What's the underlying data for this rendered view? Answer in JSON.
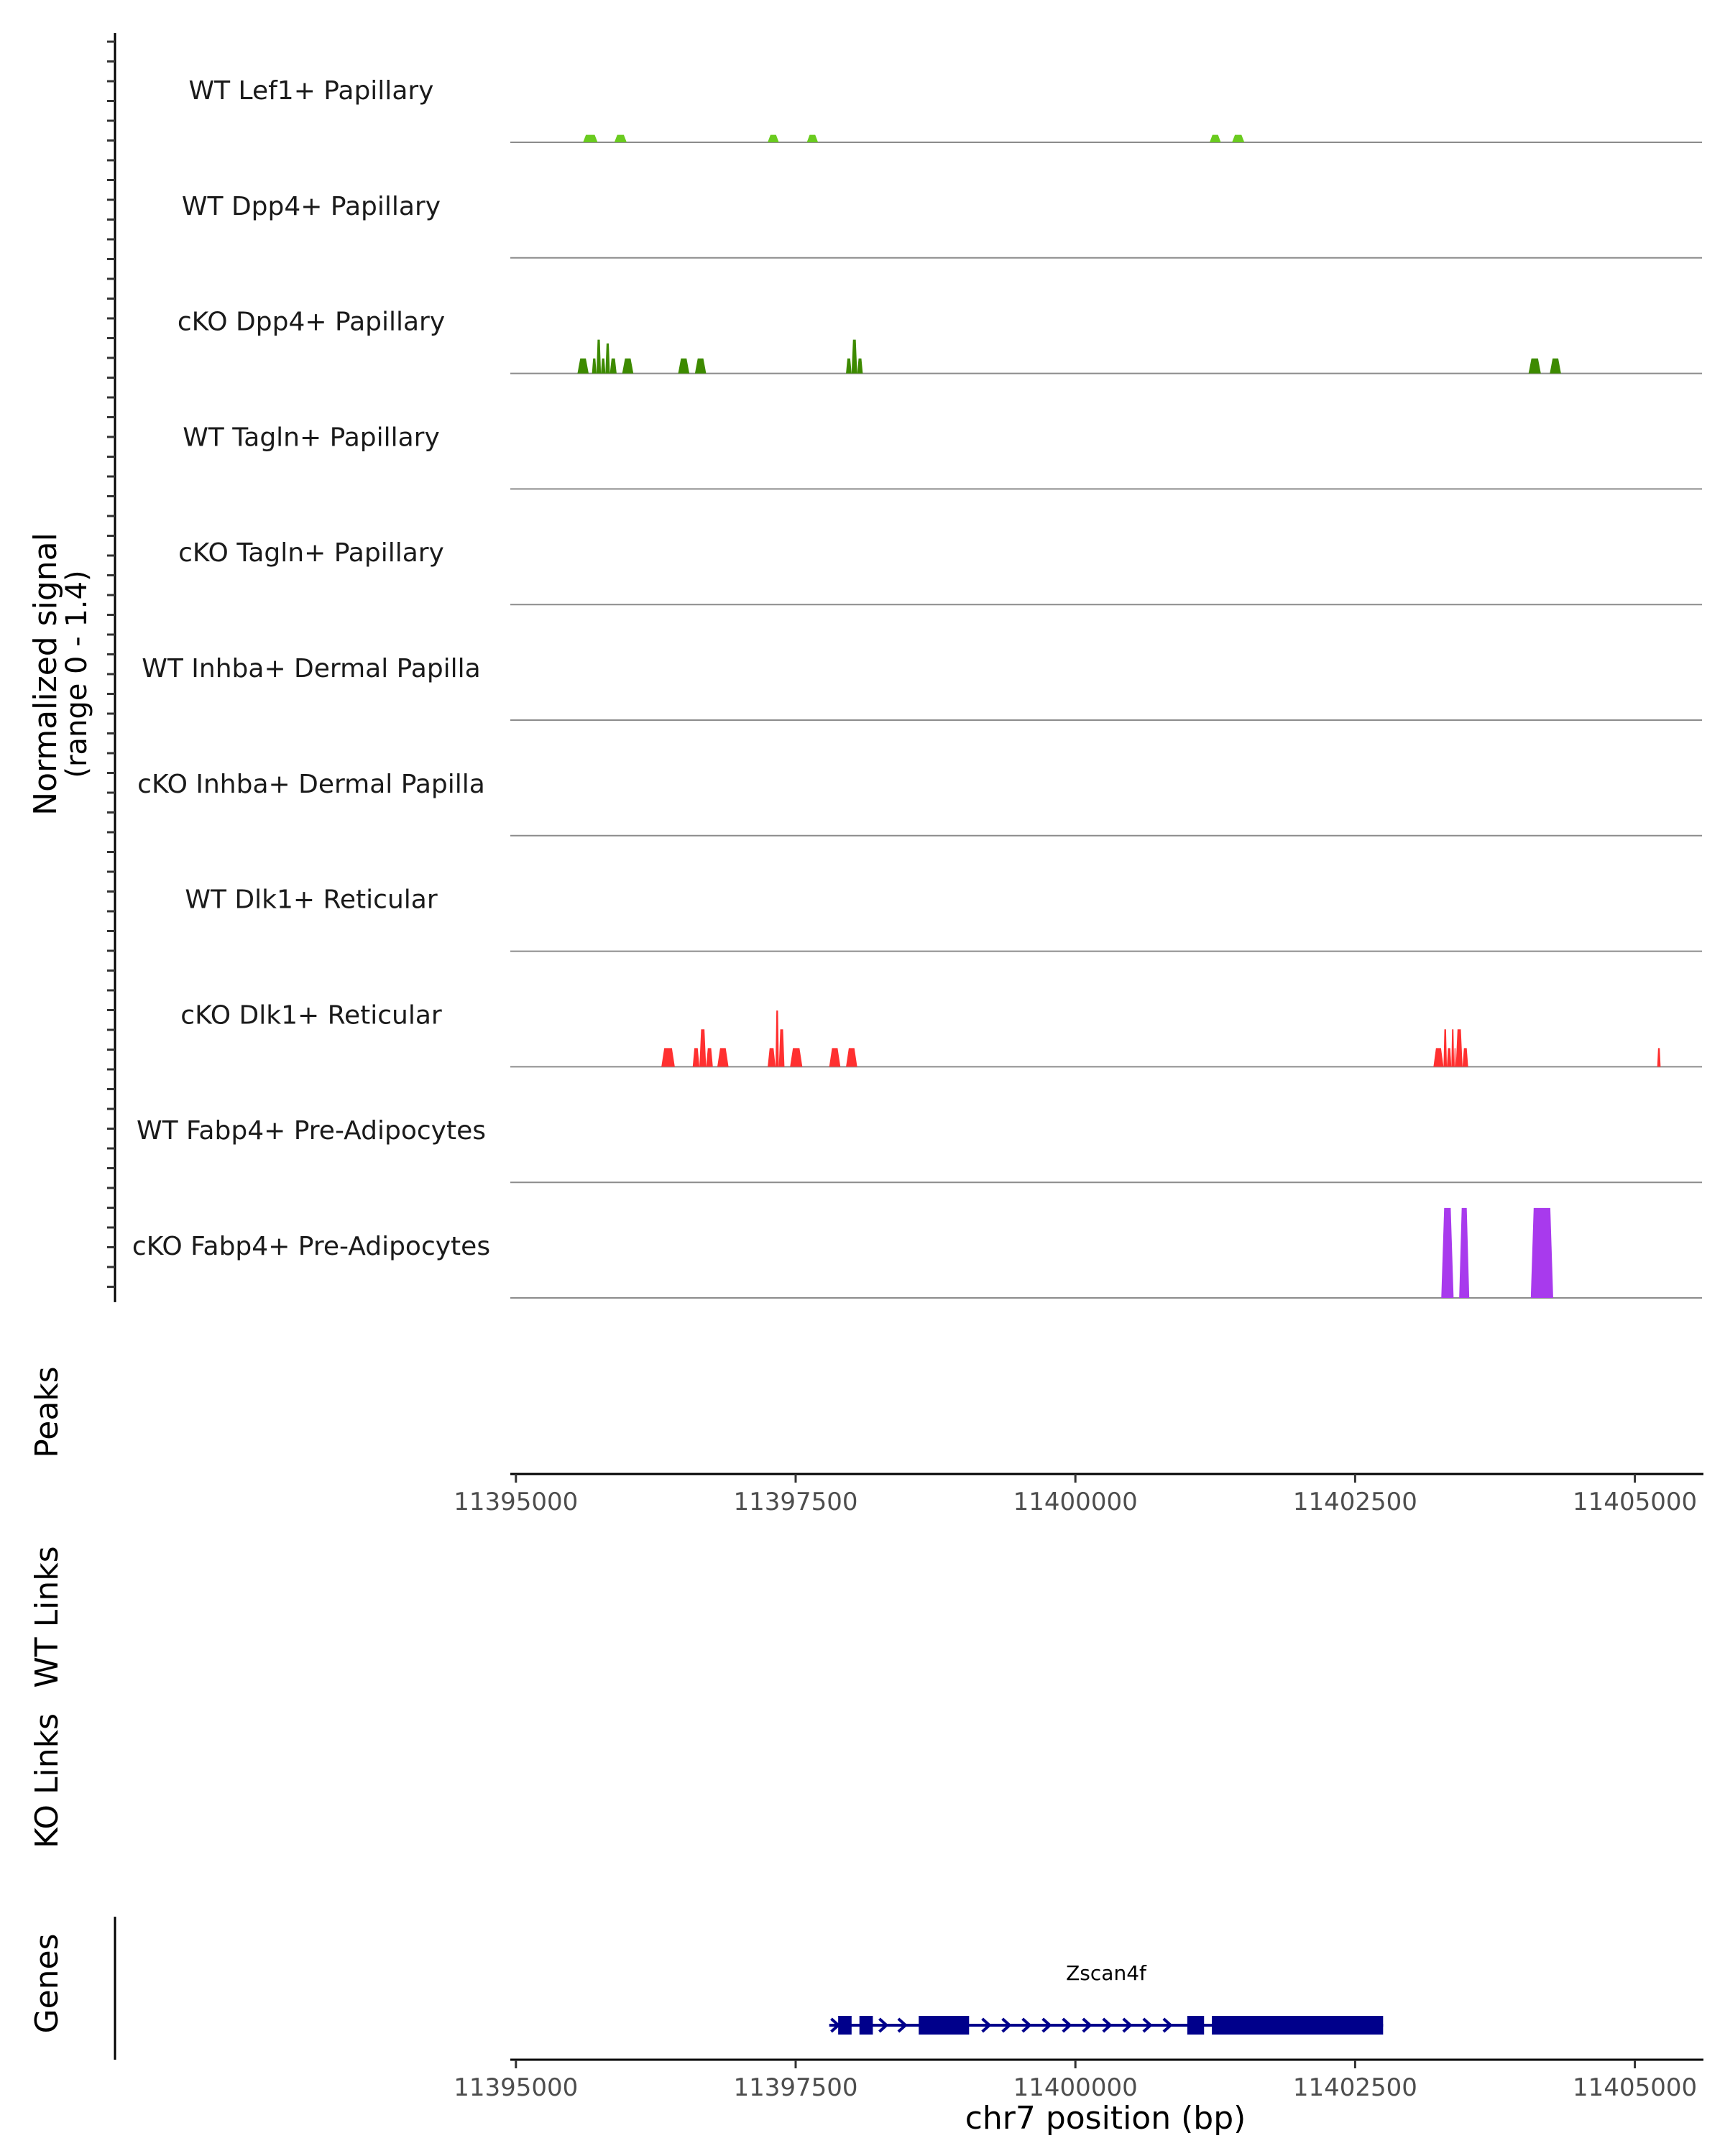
{
  "chart_data": {
    "type": "area",
    "ylabel": "Normalized signal",
    "ylabel_range": "(range 0 - 1.4)",
    "ylim": [
      0,
      1.4
    ],
    "xlim": [
      11394950,
      11405600
    ],
    "xlabel": "chr7 position (bp)",
    "x_ticks": [
      11395000,
      11397500,
      11400000,
      11402500,
      11405000
    ],
    "x_tick_labels": [
      "11395000",
      "11397500",
      "11400000",
      "11402500",
      "11405000"
    ],
    "tracks": [
      {
        "name": "WT Lef1+ Papillary",
        "color": "#6ACB1F",
        "peaks": [
          {
            "start": 11395600,
            "end": 11395730,
            "height": 0.1
          },
          {
            "start": 11395880,
            "end": 11395990,
            "height": 0.1
          },
          {
            "start": 11397250,
            "end": 11397350,
            "height": 0.1
          },
          {
            "start": 11397600,
            "end": 11397700,
            "height": 0.1
          },
          {
            "start": 11401200,
            "end": 11401300,
            "height": 0.1
          },
          {
            "start": 11401400,
            "end": 11401510,
            "height": 0.1
          }
        ]
      },
      {
        "name": "WT Dpp4+ Papillary",
        "color": "#3D8A00",
        "peaks": []
      },
      {
        "name": "cKO Dpp4+ Papillary",
        "color": "#3D8A00",
        "peaks": [
          {
            "start": 11395550,
            "end": 11395650,
            "height": 0.2
          },
          {
            "start": 11395680,
            "end": 11395720,
            "height": 0.2
          },
          {
            "start": 11395720,
            "end": 11395760,
            "height": 0.45
          },
          {
            "start": 11395760,
            "end": 11395800,
            "height": 0.2
          },
          {
            "start": 11395800,
            "end": 11395840,
            "height": 0.4
          },
          {
            "start": 11395840,
            "end": 11395900,
            "height": 0.2
          },
          {
            "start": 11395950,
            "end": 11396050,
            "height": 0.2
          },
          {
            "start": 11396450,
            "end": 11396550,
            "height": 0.2
          },
          {
            "start": 11396600,
            "end": 11396700,
            "height": 0.2
          },
          {
            "start": 11397950,
            "end": 11398000,
            "height": 0.2
          },
          {
            "start": 11398000,
            "end": 11398050,
            "height": 0.45
          },
          {
            "start": 11398050,
            "end": 11398100,
            "height": 0.2
          },
          {
            "start": 11404050,
            "end": 11404160,
            "height": 0.2
          },
          {
            "start": 11404240,
            "end": 11404340,
            "height": 0.2
          }
        ]
      },
      {
        "name": "WT Tagln+ Papillary",
        "color": "#3D8A00",
        "peaks": []
      },
      {
        "name": "cKO Tagln+ Papillary",
        "color": "#3D8A00",
        "peaks": []
      },
      {
        "name": "WT Inhba+ Dermal Papilla",
        "color": "#3D8A00",
        "peaks": []
      },
      {
        "name": "cKO Inhba+ Dermal Papilla",
        "color": "#3D8A00",
        "peaks": []
      },
      {
        "name": "WT Dlk1+ Reticular",
        "color": "#FF3030",
        "peaks": []
      },
      {
        "name": "cKO Dlk1+ Reticular",
        "color": "#FF3030",
        "peaks": [
          {
            "start": 11396300,
            "end": 11396420,
            "height": 0.25
          },
          {
            "start": 11396580,
            "end": 11396640,
            "height": 0.25
          },
          {
            "start": 11396640,
            "end": 11396700,
            "height": 0.5
          },
          {
            "start": 11396700,
            "end": 11396760,
            "height": 0.25
          },
          {
            "start": 11396800,
            "end": 11396900,
            "height": 0.25
          },
          {
            "start": 11397250,
            "end": 11397320,
            "height": 0.25
          },
          {
            "start": 11397320,
            "end": 11397350,
            "height": 0.75
          },
          {
            "start": 11397350,
            "end": 11397400,
            "height": 0.5
          },
          {
            "start": 11397450,
            "end": 11397560,
            "height": 0.25
          },
          {
            "start": 11397800,
            "end": 11397900,
            "height": 0.25
          },
          {
            "start": 11397950,
            "end": 11398050,
            "height": 0.25
          },
          {
            "start": 11403200,
            "end": 11403290,
            "height": 0.25
          },
          {
            "start": 11403290,
            "end": 11403320,
            "height": 0.5
          },
          {
            "start": 11403320,
            "end": 11403360,
            "height": 0.25
          },
          {
            "start": 11403360,
            "end": 11403385,
            "height": 0.5
          },
          {
            "start": 11403385,
            "end": 11403400,
            "height": 0.25
          },
          {
            "start": 11403400,
            "end": 11403460,
            "height": 0.5
          },
          {
            "start": 11403460,
            "end": 11403510,
            "height": 0.25
          },
          {
            "start": 11405200,
            "end": 11405230,
            "height": 0.25
          }
        ]
      },
      {
        "name": "WT Fabp4+ Pre-Adipocytes",
        "color": "#A83AED",
        "peaks": []
      },
      {
        "name": "cKO Fabp4+ Pre-Adipocytes",
        "color": "#A83AED",
        "peaks": [
          {
            "start": 11403270,
            "end": 11403380,
            "height": 1.2
          },
          {
            "start": 11403430,
            "end": 11403520,
            "height": 1.2
          },
          {
            "start": 11404070,
            "end": 11404270,
            "height": 1.2
          }
        ]
      }
    ],
    "side_labels": {
      "peaks": "Peaks",
      "wt_links": "WT Links",
      "ko_links": "KO Links",
      "genes": "Genes"
    },
    "gene": {
      "name": "Zscan4f",
      "color": "#00008B",
      "start": 11397800,
      "end": 11402750,
      "strand": "+",
      "exons": [
        {
          "start": 11397880,
          "end": 11398000
        },
        {
          "start": 11398070,
          "end": 11398190
        },
        {
          "start": 11398600,
          "end": 11399050
        },
        {
          "start": 11401000,
          "end": 11401150
        },
        {
          "start": 11401220,
          "end": 11402750
        }
      ],
      "arrows": [
        11397850,
        11398280,
        11398450,
        11399200,
        11399380,
        11399560,
        11399740,
        11399920,
        11400100,
        11400280,
        11400460,
        11400640,
        11400820
      ]
    }
  }
}
